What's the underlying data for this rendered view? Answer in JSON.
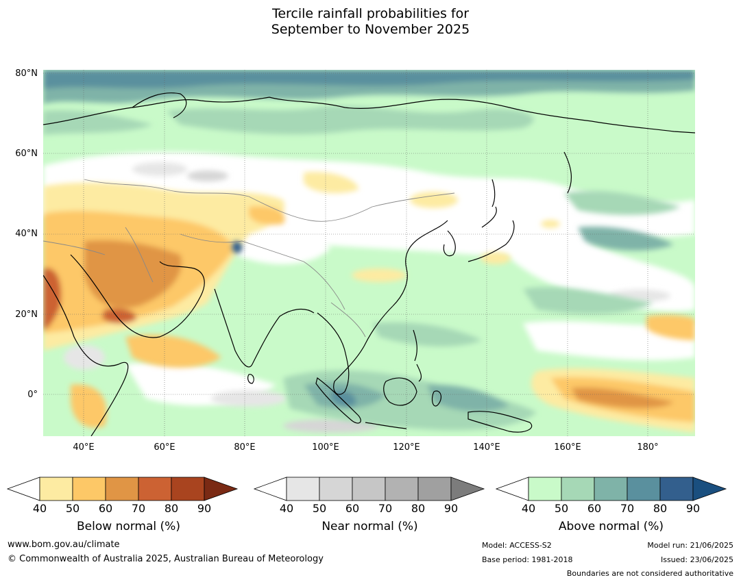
{
  "title_line1": "Tercile rainfall probabilities for",
  "title_line2": "September to November 2025",
  "lat_labels": [
    "80°N",
    "60°N",
    "40°N",
    "20°N",
    "0°"
  ],
  "lon_labels": [
    "40°E",
    "60°E",
    "80°E",
    "100°E",
    "120°E",
    "140°E",
    "160°E",
    "180°"
  ],
  "legends": [
    {
      "title": "Below normal (%)",
      "ticks": [
        "40",
        "50",
        "60",
        "70",
        "80",
        "90"
      ],
      "colors": [
        "#ffffff",
        "#fdeba2",
        "#fdc867",
        "#e09545",
        "#cc6233",
        "#a9441f",
        "#7a2a14"
      ]
    },
    {
      "title": "Near normal (%)",
      "ticks": [
        "40",
        "50",
        "60",
        "70",
        "80",
        "90"
      ],
      "colors": [
        "#ffffff",
        "#e6e6e6",
        "#d6d6d6",
        "#c6c6c6",
        "#b2b2b2",
        "#a0a0a0",
        "#7c7c7c"
      ]
    },
    {
      "title": "Above normal (%)",
      "ticks": [
        "40",
        "50",
        "60",
        "70",
        "80",
        "90"
      ],
      "colors": [
        "#ffffff",
        "#c9fac9",
        "#a6d8b6",
        "#7fb3a8",
        "#5a909e",
        "#335f8d",
        "#1a4f7f"
      ]
    }
  ],
  "footer": {
    "website": "www.bom.gov.au/climate",
    "copyright": "© Commonwealth of Australia 2025, Australian Bureau of Meteorology",
    "model": "Model: ACCESS-S2",
    "base_period": "Base period: 1981-2018",
    "model_run": "Model run: 21/06/2025",
    "issued": "Issued: 23/06/2025",
    "boundaries_note": "Boundaries are not considered authoritative"
  }
}
